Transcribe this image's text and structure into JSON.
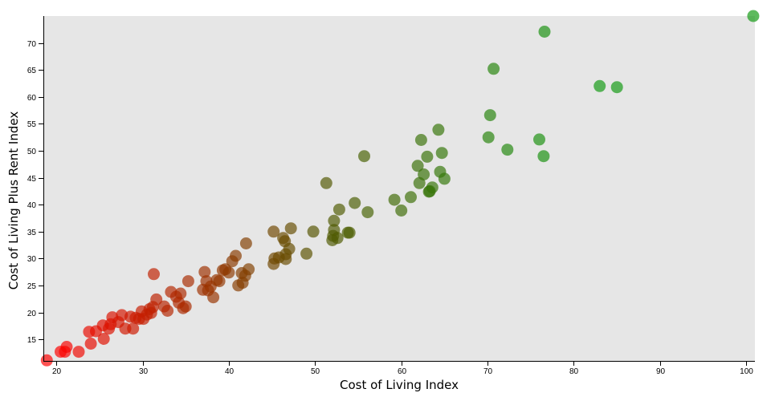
{
  "chart_data": {
    "type": "scatter",
    "title": "",
    "xlabel": "Cost of Living Index",
    "ylabel": "Cost of Living Plus Rent Index",
    "xlim": [
      18.5,
      101
    ],
    "ylim": [
      11,
      75
    ],
    "xticks": [
      20,
      30,
      40,
      50,
      60,
      70,
      80,
      90,
      100
    ],
    "yticks": [
      15,
      20,
      25,
      30,
      35,
      40,
      45,
      50,
      55,
      60,
      65,
      70
    ],
    "grid": false,
    "legend": "none",
    "colors": {
      "plot_background": "#e6e6e6",
      "low": "#ff0000",
      "mid": "#555500",
      "high": "#119911"
    },
    "points": [
      {
        "x": 18.9,
        "y": 11.1
      },
      {
        "x": 20.5,
        "y": 12.7
      },
      {
        "x": 21.0,
        "y": 12.7
      },
      {
        "x": 21.2,
        "y": 13.6
      },
      {
        "x": 22.6,
        "y": 12.7
      },
      {
        "x": 23.8,
        "y": 16.4
      },
      {
        "x": 24.0,
        "y": 14.2
      },
      {
        "x": 24.6,
        "y": 16.5
      },
      {
        "x": 25.4,
        "y": 17.6
      },
      {
        "x": 25.5,
        "y": 15.1
      },
      {
        "x": 26.1,
        "y": 17.0
      },
      {
        "x": 26.3,
        "y": 17.8
      },
      {
        "x": 26.5,
        "y": 19.1
      },
      {
        "x": 27.2,
        "y": 18.2
      },
      {
        "x": 27.6,
        "y": 19.5
      },
      {
        "x": 28.0,
        "y": 17.0
      },
      {
        "x": 28.6,
        "y": 19.2
      },
      {
        "x": 28.9,
        "y": 17.0
      },
      {
        "x": 29.2,
        "y": 19.0
      },
      {
        "x": 29.6,
        "y": 18.8
      },
      {
        "x": 29.9,
        "y": 20.2
      },
      {
        "x": 30.1,
        "y": 18.8
      },
      {
        "x": 30.5,
        "y": 19.6
      },
      {
        "x": 30.8,
        "y": 20.6
      },
      {
        "x": 31.0,
        "y": 19.9
      },
      {
        "x": 31.2,
        "y": 21.0
      },
      {
        "x": 31.3,
        "y": 27.1
      },
      {
        "x": 31.6,
        "y": 22.4
      },
      {
        "x": 32.5,
        "y": 21.1
      },
      {
        "x": 32.9,
        "y": 20.3
      },
      {
        "x": 33.3,
        "y": 23.8
      },
      {
        "x": 33.9,
        "y": 22.9
      },
      {
        "x": 34.2,
        "y": 21.8
      },
      {
        "x": 34.4,
        "y": 23.5
      },
      {
        "x": 34.7,
        "y": 20.8
      },
      {
        "x": 35.0,
        "y": 21.1
      },
      {
        "x": 35.3,
        "y": 25.8
      },
      {
        "x": 37.0,
        "y": 24.2
      },
      {
        "x": 37.2,
        "y": 27.5
      },
      {
        "x": 37.4,
        "y": 25.8
      },
      {
        "x": 37.6,
        "y": 24.1
      },
      {
        "x": 37.9,
        "y": 24.8
      },
      {
        "x": 38.2,
        "y": 22.8
      },
      {
        "x": 38.6,
        "y": 26.0
      },
      {
        "x": 38.9,
        "y": 25.8
      },
      {
        "x": 39.3,
        "y": 27.8
      },
      {
        "x": 39.6,
        "y": 28.0
      },
      {
        "x": 40.0,
        "y": 27.4
      },
      {
        "x": 40.4,
        "y": 29.5
      },
      {
        "x": 40.8,
        "y": 30.5
      },
      {
        "x": 41.1,
        "y": 25.0
      },
      {
        "x": 41.5,
        "y": 27.3
      },
      {
        "x": 41.6,
        "y": 25.5
      },
      {
        "x": 41.9,
        "y": 26.8
      },
      {
        "x": 42.0,
        "y": 32.8
      },
      {
        "x": 42.3,
        "y": 28.0
      },
      {
        "x": 45.2,
        "y": 35.0
      },
      {
        "x": 45.2,
        "y": 29.0
      },
      {
        "x": 45.3,
        "y": 30.0
      },
      {
        "x": 45.8,
        "y": 30.2
      },
      {
        "x": 46.3,
        "y": 33.8
      },
      {
        "x": 46.5,
        "y": 33.2
      },
      {
        "x": 46.6,
        "y": 30.8
      },
      {
        "x": 46.6,
        "y": 29.9
      },
      {
        "x": 47.0,
        "y": 31.8
      },
      {
        "x": 47.2,
        "y": 35.6
      },
      {
        "x": 49.0,
        "y": 30.9
      },
      {
        "x": 49.8,
        "y": 35.0
      },
      {
        "x": 51.3,
        "y": 44.0
      },
      {
        "x": 52.0,
        "y": 33.4
      },
      {
        "x": 52.1,
        "y": 34.2
      },
      {
        "x": 52.2,
        "y": 35.3
      },
      {
        "x": 52.2,
        "y": 37.0
      },
      {
        "x": 52.6,
        "y": 33.8
      },
      {
        "x": 52.8,
        "y": 39.1
      },
      {
        "x": 53.8,
        "y": 34.8
      },
      {
        "x": 54.0,
        "y": 34.8
      },
      {
        "x": 54.6,
        "y": 40.3
      },
      {
        "x": 55.7,
        "y": 49.0
      },
      {
        "x": 56.1,
        "y": 38.6
      },
      {
        "x": 59.2,
        "y": 40.9
      },
      {
        "x": 60.0,
        "y": 38.9
      },
      {
        "x": 61.1,
        "y": 41.4
      },
      {
        "x": 61.9,
        "y": 47.2
      },
      {
        "x": 62.1,
        "y": 44.0
      },
      {
        "x": 62.3,
        "y": 52.0
      },
      {
        "x": 62.6,
        "y": 45.6
      },
      {
        "x": 63.0,
        "y": 48.9
      },
      {
        "x": 63.2,
        "y": 42.4
      },
      {
        "x": 63.3,
        "y": 42.5
      },
      {
        "x": 63.6,
        "y": 43.2
      },
      {
        "x": 64.3,
        "y": 53.9
      },
      {
        "x": 64.5,
        "y": 46.1
      },
      {
        "x": 64.7,
        "y": 49.6
      },
      {
        "x": 65.0,
        "y": 44.8
      },
      {
        "x": 70.1,
        "y": 52.5
      },
      {
        "x": 70.3,
        "y": 56.6
      },
      {
        "x": 70.7,
        "y": 65.2
      },
      {
        "x": 72.3,
        "y": 50.2
      },
      {
        "x": 76.0,
        "y": 52.1
      },
      {
        "x": 76.5,
        "y": 49.0
      },
      {
        "x": 76.6,
        "y": 72.1
      },
      {
        "x": 83.0,
        "y": 62.0
      },
      {
        "x": 85.0,
        "y": 61.8
      },
      {
        "x": 100.8,
        "y": 75.0
      }
    ]
  }
}
